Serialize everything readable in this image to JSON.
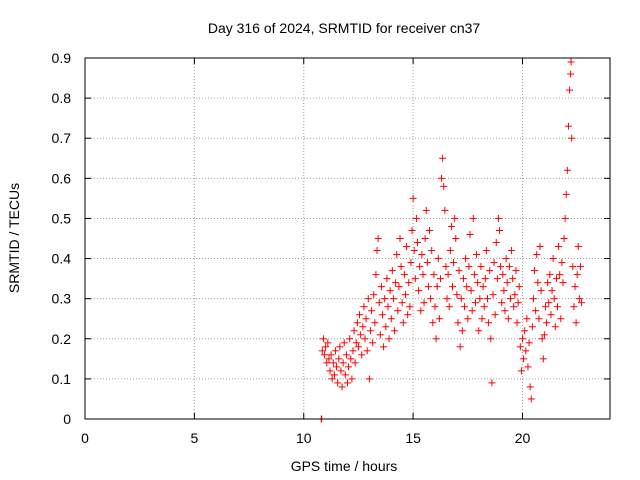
{
  "chart_data": {
    "type": "scatter",
    "title": "Day 316 of 2024, SRMTID for receiver cn37",
    "xlabel": "GPS time / hours",
    "ylabel": "SRMTID / TECUs",
    "xlim": [
      0,
      24
    ],
    "ylim": [
      0,
      0.9
    ],
    "xticks": [
      0,
      5,
      10,
      15,
      20
    ],
    "yticks": [
      0,
      0.1,
      0.2,
      0.3,
      0.4,
      0.5,
      0.6,
      0.7,
      0.8,
      0.9
    ],
    "xtick_labels": [
      "0",
      "5",
      "10",
      "15",
      "20"
    ],
    "ytick_labels": [
      "0",
      "0.1",
      "0.2",
      "0.3",
      "0.4",
      "0.5",
      "0.6",
      "0.7",
      "0.8",
      "0.9"
    ],
    "grid": true,
    "marker": "+",
    "color": "#ff0000",
    "series": [
      {
        "name": "cn37",
        "points": [
          [
            10.8,
            0.0
          ],
          [
            10.82,
            0.0
          ],
          [
            10.85,
            0.17
          ],
          [
            10.9,
            0.2
          ],
          [
            10.95,
            0.16
          ],
          [
            11.0,
            0.18
          ],
          [
            11.05,
            0.14
          ],
          [
            11.1,
            0.19
          ],
          [
            11.15,
            0.15
          ],
          [
            11.2,
            0.12
          ],
          [
            11.25,
            0.16
          ],
          [
            11.3,
            0.1
          ],
          [
            11.35,
            0.14
          ],
          [
            11.4,
            0.11
          ],
          [
            11.45,
            0.17
          ],
          [
            11.5,
            0.13
          ],
          [
            11.55,
            0.09
          ],
          [
            11.6,
            0.15
          ],
          [
            11.65,
            0.18
          ],
          [
            11.7,
            0.12
          ],
          [
            11.75,
            0.08
          ],
          [
            11.8,
            0.14
          ],
          [
            11.85,
            0.19
          ],
          [
            11.9,
            0.11
          ],
          [
            11.95,
            0.16
          ],
          [
            12.0,
            0.09
          ],
          [
            12.05,
            0.13
          ],
          [
            12.1,
            0.2
          ],
          [
            12.15,
            0.15
          ],
          [
            12.2,
            0.1
          ],
          [
            12.25,
            0.17
          ],
          [
            12.3,
            0.22
          ],
          [
            12.35,
            0.14
          ],
          [
            12.4,
            0.19
          ],
          [
            12.45,
            0.24
          ],
          [
            12.5,
            0.18
          ],
          [
            12.55,
            0.26
          ],
          [
            12.6,
            0.21
          ],
          [
            12.65,
            0.16
          ],
          [
            12.7,
            0.23
          ],
          [
            12.75,
            0.28
          ],
          [
            12.8,
            0.2
          ],
          [
            12.85,
            0.25
          ],
          [
            12.9,
            0.17
          ],
          [
            12.95,
            0.3
          ],
          [
            13.0,
            0.1
          ],
          [
            13.05,
            0.22
          ],
          [
            13.1,
            0.27
          ],
          [
            13.15,
            0.19
          ],
          [
            13.2,
            0.31
          ],
          [
            13.25,
            0.24
          ],
          [
            13.3,
            0.36
          ],
          [
            13.35,
            0.42
          ],
          [
            13.4,
            0.45
          ],
          [
            13.45,
            0.29
          ],
          [
            13.5,
            0.21
          ],
          [
            13.55,
            0.33
          ],
          [
            13.6,
            0.26
          ],
          [
            13.65,
            0.18
          ],
          [
            13.7,
            0.3
          ],
          [
            13.75,
            0.23
          ],
          [
            13.8,
            0.35
          ],
          [
            13.85,
            0.28
          ],
          [
            13.9,
            0.2
          ],
          [
            13.95,
            0.32
          ],
          [
            14.0,
            0.25
          ],
          [
            14.05,
            0.37
          ],
          [
            14.1,
            0.3
          ],
          [
            14.15,
            0.22
          ],
          [
            14.2,
            0.34
          ],
          [
            14.25,
            0.41
          ],
          [
            14.3,
            0.27
          ],
          [
            14.35,
            0.33
          ],
          [
            14.4,
            0.45
          ],
          [
            14.45,
            0.38
          ],
          [
            14.5,
            0.29
          ],
          [
            14.55,
            0.24
          ],
          [
            14.6,
            0.36
          ],
          [
            14.65,
            0.31
          ],
          [
            14.7,
            0.43
          ],
          [
            14.75,
            0.26
          ],
          [
            14.8,
            0.34
          ],
          [
            14.85,
            0.28
          ],
          [
            14.9,
            0.39
          ],
          [
            14.95,
            0.47
          ],
          [
            15.0,
            0.55
          ],
          [
            15.05,
            0.42
          ],
          [
            15.1,
            0.35
          ],
          [
            15.15,
            0.5
          ],
          [
            15.2,
            0.44
          ],
          [
            15.25,
            0.32
          ],
          [
            15.3,
            0.38
          ],
          [
            15.35,
            0.27
          ],
          [
            15.4,
            0.41
          ],
          [
            15.45,
            0.36
          ],
          [
            15.5,
            0.29
          ],
          [
            15.55,
            0.45
          ],
          [
            15.6,
            0.52
          ],
          [
            15.65,
            0.39
          ],
          [
            15.7,
            0.33
          ],
          [
            15.75,
            0.47
          ],
          [
            15.8,
            0.3
          ],
          [
            15.85,
            0.42
          ],
          [
            15.9,
            0.24
          ],
          [
            15.95,
            0.36
          ],
          [
            16.0,
            0.28
          ],
          [
            16.05,
            0.2
          ],
          [
            16.1,
            0.33
          ],
          [
            16.15,
            0.4
          ],
          [
            16.2,
            0.25
          ],
          [
            16.25,
            0.35
          ],
          [
            16.3,
            0.6
          ],
          [
            16.35,
            0.65
          ],
          [
            16.4,
            0.58
          ],
          [
            16.45,
            0.52
          ],
          [
            16.5,
            0.38
          ],
          [
            16.55,
            0.3
          ],
          [
            16.6,
            0.36
          ],
          [
            16.65,
            0.28
          ],
          [
            16.7,
            0.42
          ],
          [
            16.75,
            0.48
          ],
          [
            16.8,
            0.33
          ],
          [
            16.85,
            0.39
          ],
          [
            16.9,
            0.5
          ],
          [
            16.95,
            0.45
          ],
          [
            17.0,
            0.31
          ],
          [
            17.05,
            0.24
          ],
          [
            17.1,
            0.37
          ],
          [
            17.15,
            0.18
          ],
          [
            17.2,
            0.3
          ],
          [
            17.25,
            0.22
          ],
          [
            17.3,
            0.35
          ],
          [
            17.35,
            0.28
          ],
          [
            17.4,
            0.4
          ],
          [
            17.45,
            0.33
          ],
          [
            17.5,
            0.25
          ],
          [
            17.55,
            0.38
          ],
          [
            17.6,
            0.46
          ],
          [
            17.65,
            0.32
          ],
          [
            17.7,
            0.27
          ],
          [
            17.75,
            0.5
          ],
          [
            17.8,
            0.36
          ],
          [
            17.85,
            0.29
          ],
          [
            17.9,
            0.41
          ],
          [
            17.95,
            0.34
          ],
          [
            18.0,
            0.22
          ],
          [
            18.05,
            0.3
          ],
          [
            18.1,
            0.38
          ],
          [
            18.15,
            0.25
          ],
          [
            18.2,
            0.33
          ],
          [
            18.25,
            0.28
          ],
          [
            18.3,
            0.35
          ],
          [
            18.35,
            0.42
          ],
          [
            18.4,
            0.3
          ],
          [
            18.45,
            0.24
          ],
          [
            18.5,
            0.37
          ],
          [
            18.55,
            0.2
          ],
          [
            18.6,
            0.09
          ],
          [
            18.65,
            0.31
          ],
          [
            18.7,
            0.39
          ],
          [
            18.75,
            0.26
          ],
          [
            18.8,
            0.44
          ],
          [
            18.85,
            0.35
          ],
          [
            18.9,
            0.5
          ],
          [
            18.95,
            0.47
          ],
          [
            19.0,
            0.38
          ],
          [
            19.05,
            0.29
          ],
          [
            19.1,
            0.36
          ],
          [
            19.15,
            0.32
          ],
          [
            19.2,
            0.27
          ],
          [
            19.25,
            0.4
          ],
          [
            19.3,
            0.34
          ],
          [
            19.35,
            0.25
          ],
          [
            19.4,
            0.38
          ],
          [
            19.45,
            0.3
          ],
          [
            19.5,
            0.42
          ],
          [
            19.55,
            0.35
          ],
          [
            19.6,
            0.28
          ],
          [
            19.65,
            0.31
          ],
          [
            19.7,
            0.37
          ],
          [
            19.75,
            0.24
          ],
          [
            19.8,
            0.29
          ],
          [
            19.85,
            0.33
          ],
          [
            19.9,
            0.18
          ],
          [
            19.95,
            0.12
          ],
          [
            20.0,
            0.2
          ],
          [
            20.05,
            0.15
          ],
          [
            20.1,
            0.22
          ],
          [
            20.15,
            0.17
          ],
          [
            20.2,
            0.25
          ],
          [
            20.25,
            0.13
          ],
          [
            20.3,
            0.19
          ],
          [
            20.35,
            0.08
          ],
          [
            20.4,
            0.05
          ],
          [
            20.45,
            0.23
          ],
          [
            20.5,
            0.3
          ],
          [
            20.55,
            0.37
          ],
          [
            20.6,
            0.27
          ],
          [
            20.65,
            0.41
          ],
          [
            20.7,
            0.34
          ],
          [
            20.75,
            0.25
          ],
          [
            20.8,
            0.43
          ],
          [
            20.85,
            0.32
          ],
          [
            20.9,
            0.2
          ],
          [
            20.95,
            0.15
          ],
          [
            21.0,
            0.21
          ],
          [
            21.05,
            0.28
          ],
          [
            21.1,
            0.24
          ],
          [
            21.15,
            0.34
          ],
          [
            21.2,
            0.29
          ],
          [
            21.25,
            0.36
          ],
          [
            21.3,
            0.26
          ],
          [
            21.35,
            0.32
          ],
          [
            21.4,
            0.4
          ],
          [
            21.45,
            0.3
          ],
          [
            21.5,
            0.23
          ],
          [
            21.55,
            0.35
          ],
          [
            21.6,
            0.28
          ],
          [
            21.65,
            0.43
          ],
          [
            21.7,
            0.36
          ],
          [
            21.75,
            0.25
          ],
          [
            21.8,
            0.39
          ],
          [
            21.85,
            0.34
          ],
          [
            21.9,
            0.45
          ],
          [
            21.95,
            0.5
          ],
          [
            22.0,
            0.56
          ],
          [
            22.05,
            0.62
          ],
          [
            22.1,
            0.73
          ],
          [
            22.15,
            0.82
          ],
          [
            22.2,
            0.86
          ],
          [
            22.22,
            0.89
          ],
          [
            22.25,
            0.7
          ],
          [
            22.3,
            0.38
          ],
          [
            22.35,
            0.28
          ],
          [
            22.4,
            0.33
          ],
          [
            22.45,
            0.24
          ],
          [
            22.5,
            0.36
          ],
          [
            22.55,
            0.43
          ],
          [
            22.6,
            0.3
          ],
          [
            22.65,
            0.38
          ],
          [
            22.7,
            0.29
          ]
        ]
      }
    ]
  }
}
